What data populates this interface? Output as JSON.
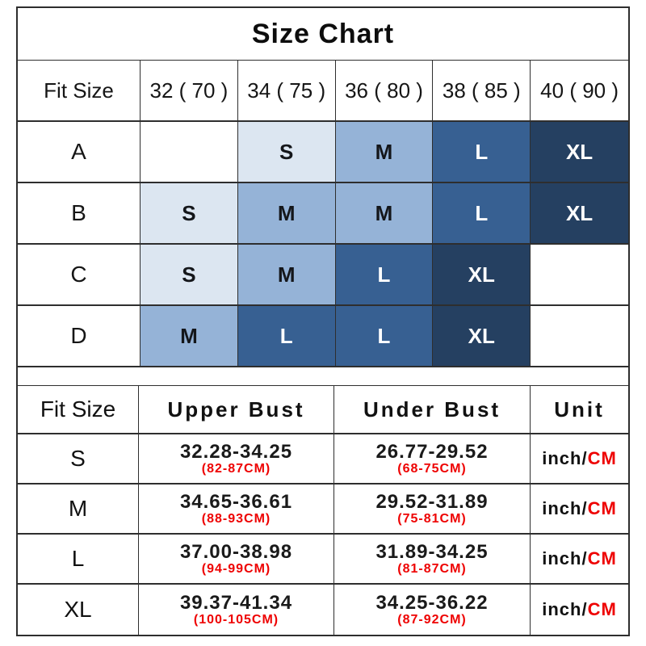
{
  "title": "Size Chart",
  "colors": {
    "size_s": "#DCE6F1",
    "size_m": "#95B3D7",
    "size_l": "#376092",
    "size_xl": "#254061",
    "accent_red": "#EE0000",
    "grid_line": "#2E2E2E"
  },
  "size_matrix": {
    "header": {
      "fit_size": "Fit Size",
      "cols": [
        "32 ( 70 )",
        "34 ( 75 )",
        "36 ( 80 )",
        "38 ( 85 )",
        "40 ( 90 )"
      ]
    },
    "rows": [
      {
        "label": "A",
        "cells": [
          {
            "size": ""
          },
          {
            "size": "S"
          },
          {
            "size": "M"
          },
          {
            "size": "L"
          },
          {
            "size": "XL"
          }
        ]
      },
      {
        "label": "B",
        "cells": [
          {
            "size": "S"
          },
          {
            "size": "M"
          },
          {
            "size": "M"
          },
          {
            "size": "L"
          },
          {
            "size": "XL"
          }
        ]
      },
      {
        "label": "C",
        "cells": [
          {
            "size": "S"
          },
          {
            "size": "M"
          },
          {
            "size": "L"
          },
          {
            "size": "XL"
          },
          {
            "size": ""
          }
        ]
      },
      {
        "label": "D",
        "cells": [
          {
            "size": "M"
          },
          {
            "size": "L"
          },
          {
            "size": "L"
          },
          {
            "size": "XL"
          },
          {
            "size": ""
          }
        ]
      }
    ]
  },
  "measurements": {
    "header": {
      "fit_size": "Fit Size",
      "upper": "Upper Bust",
      "under": "Under Bust",
      "unit": "Unit"
    },
    "unit": {
      "inch": "inch/",
      "cm": "CM"
    },
    "rows": [
      {
        "label": "S",
        "upper_inch": "32.28-34.25",
        "upper_cm": "(82-87CM)",
        "under_inch": "26.77-29.52",
        "under_cm": "(68-75CM)"
      },
      {
        "label": "M",
        "upper_inch": "34.65-36.61",
        "upper_cm": "(88-93CM)",
        "under_inch": "29.52-31.89",
        "under_cm": "(75-81CM)"
      },
      {
        "label": "L",
        "upper_inch": "37.00-38.98",
        "upper_cm": "(94-99CM)",
        "under_inch": "31.89-34.25",
        "under_cm": "(81-87CM)"
      },
      {
        "label": "XL",
        "upper_inch": "39.37-41.34",
        "upper_cm": "(100-105CM)",
        "under_inch": "34.25-36.22",
        "under_cm": "(87-92CM)"
      }
    ]
  },
  "chart_data": [
    {
      "type": "table",
      "title": "Size Chart",
      "columns": [
        "Fit Size",
        "32 ( 70 )",
        "34 ( 75 )",
        "36 ( 80 )",
        "38 ( 85 )",
        "40 ( 90 )"
      ],
      "rows": [
        [
          "A",
          "",
          "S",
          "M",
          "L",
          "XL"
        ],
        [
          "B",
          "S",
          "M",
          "M",
          "L",
          "XL"
        ],
        [
          "C",
          "S",
          "M",
          "L",
          "XL",
          ""
        ],
        [
          "D",
          "M",
          "L",
          "L",
          "XL",
          ""
        ]
      ],
      "cell_colors": {
        "S": "#DCE6F1",
        "M": "#95B3D7",
        "L": "#376092",
        "XL": "#254061"
      }
    },
    {
      "type": "table",
      "columns": [
        "Fit Size",
        "Upper Bust",
        "Under Bust",
        "Unit"
      ],
      "rows": [
        [
          "S",
          "32.28-34.25 (82-87CM)",
          "26.77-29.52 (68-75CM)",
          "inch/CM"
        ],
        [
          "M",
          "34.65-36.61 (88-93CM)",
          "29.52-31.89 (75-81CM)",
          "inch/CM"
        ],
        [
          "L",
          "37.00-38.98 (94-99CM)",
          "31.89-34.25 (81-87CM)",
          "inch/CM"
        ],
        [
          "XL",
          "39.37-41.34 (100-105CM)",
          "34.25-36.22 (87-92CM)",
          "inch/CM"
        ]
      ]
    }
  ]
}
